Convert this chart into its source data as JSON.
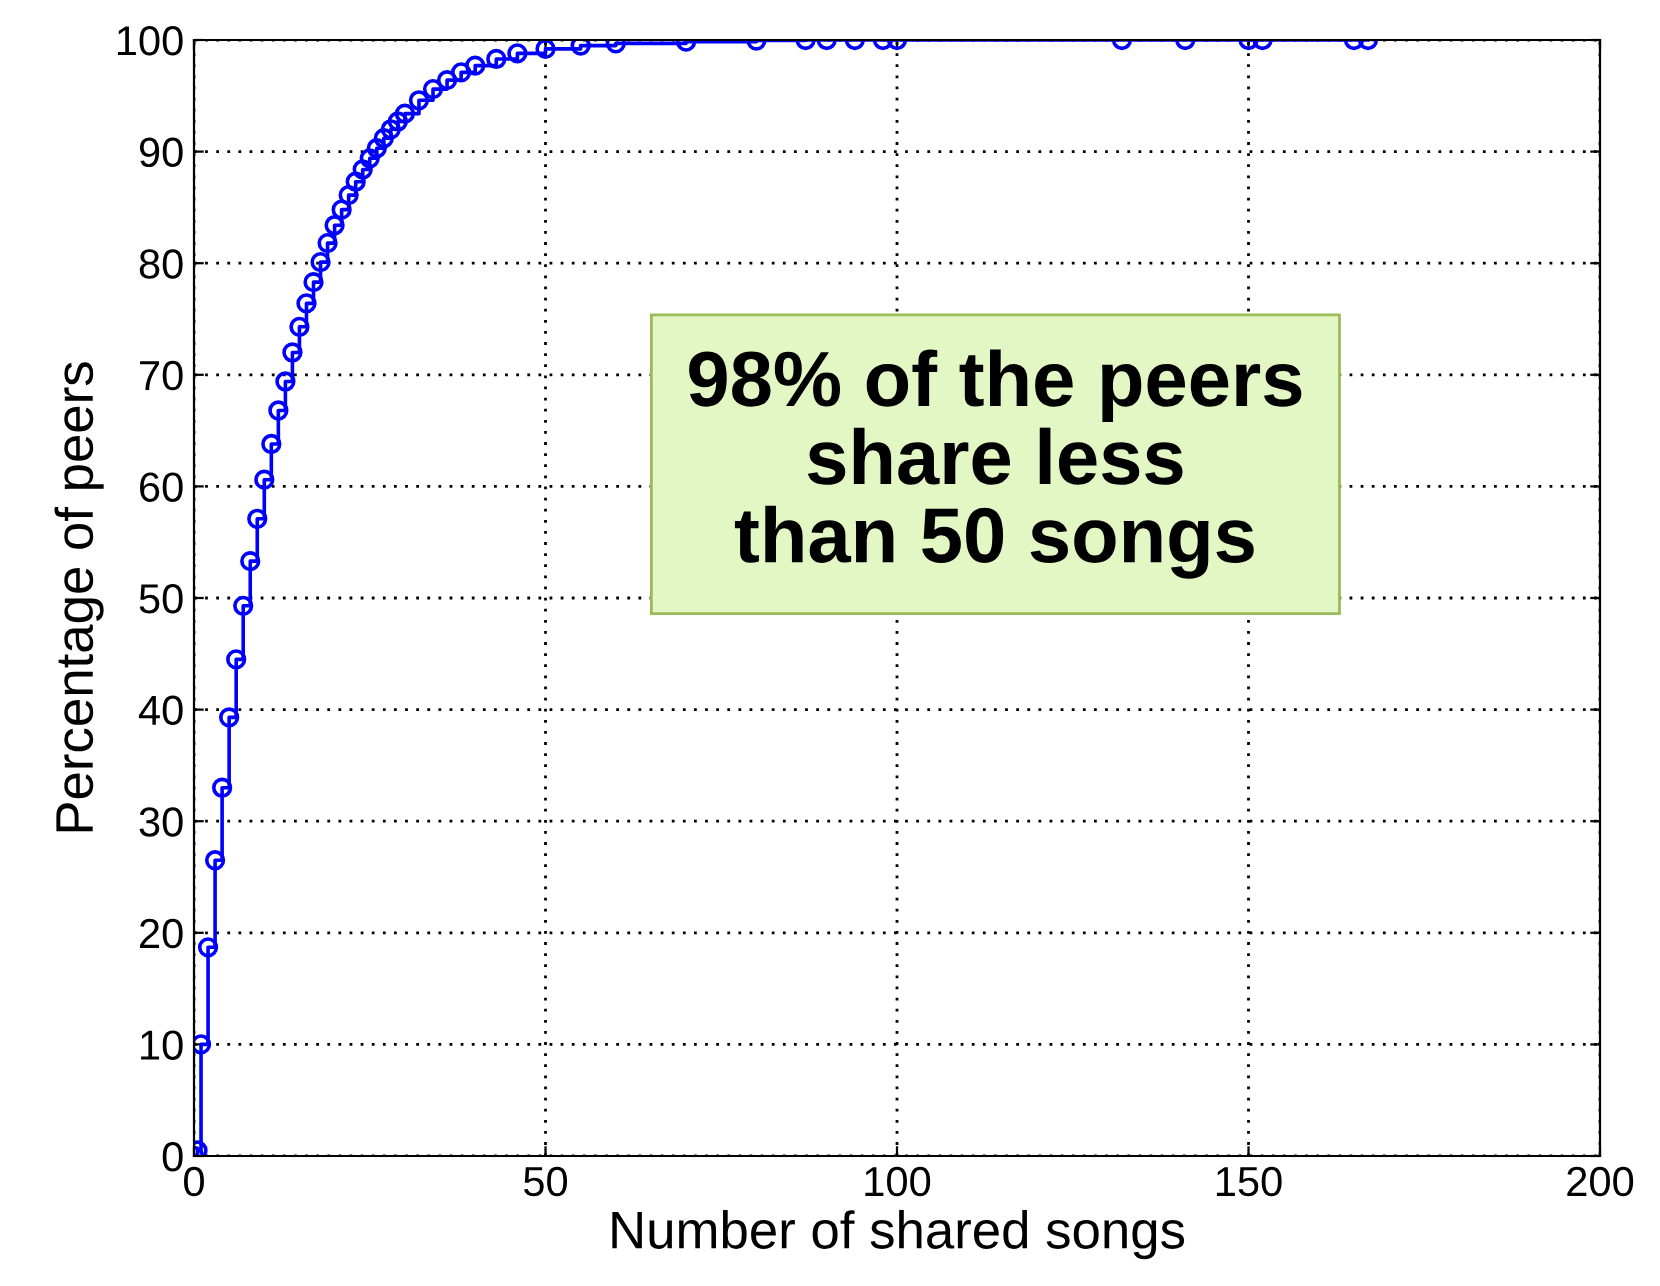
{
  "chart_data": {
    "type": "step",
    "xlabel": "Number of shared songs",
    "ylabel": "Percentage of peers",
    "annotations": [
      "98% of the peers\nshare less\nthan 50 songs"
    ],
    "series": [
      {
        "color": "#0000ff",
        "x": [
          0,
          0.5,
          1,
          2,
          3,
          4,
          5,
          6,
          7,
          8,
          9,
          10,
          11,
          12,
          13,
          14,
          15,
          16,
          17,
          18,
          19,
          20,
          21,
          22,
          23,
          24,
          25,
          26,
          27,
          28,
          29,
          30,
          32,
          34,
          36,
          38,
          40,
          43,
          46,
          50,
          55,
          60,
          70,
          80,
          87,
          90,
          94,
          98,
          100,
          132,
          141,
          150,
          152,
          165,
          167
        ],
        "values": [
          0,
          0.5,
          10,
          18.7,
          26.5,
          33,
          39.3,
          44.5,
          49.3,
          53.3,
          57.1,
          60.6,
          63.8,
          66.8,
          69.4,
          72,
          74.3,
          76.4,
          78.3,
          80.1,
          81.8,
          83.4,
          84.8,
          86.1,
          87.3,
          88.4,
          89.4,
          90.3,
          91.2,
          92,
          92.7,
          93.4,
          94.6,
          95.6,
          96.4,
          97.1,
          97.7,
          98.3,
          98.8,
          99.2,
          99.5,
          99.7,
          99.85,
          99.95,
          100,
          100,
          100,
          100,
          100,
          100,
          100,
          100,
          100,
          100,
          100
        ]
      }
    ],
    "xlim": [
      0,
      200
    ],
    "xticks": [
      0,
      50,
      100,
      150,
      200
    ],
    "ylim": [
      0,
      100
    ],
    "yticks": [
      0,
      10,
      20,
      30,
      40,
      50,
      60,
      70,
      80,
      90,
      100
    ],
    "grid": true,
    "marker": "circle",
    "line_style": "solid",
    "legend": false
  }
}
